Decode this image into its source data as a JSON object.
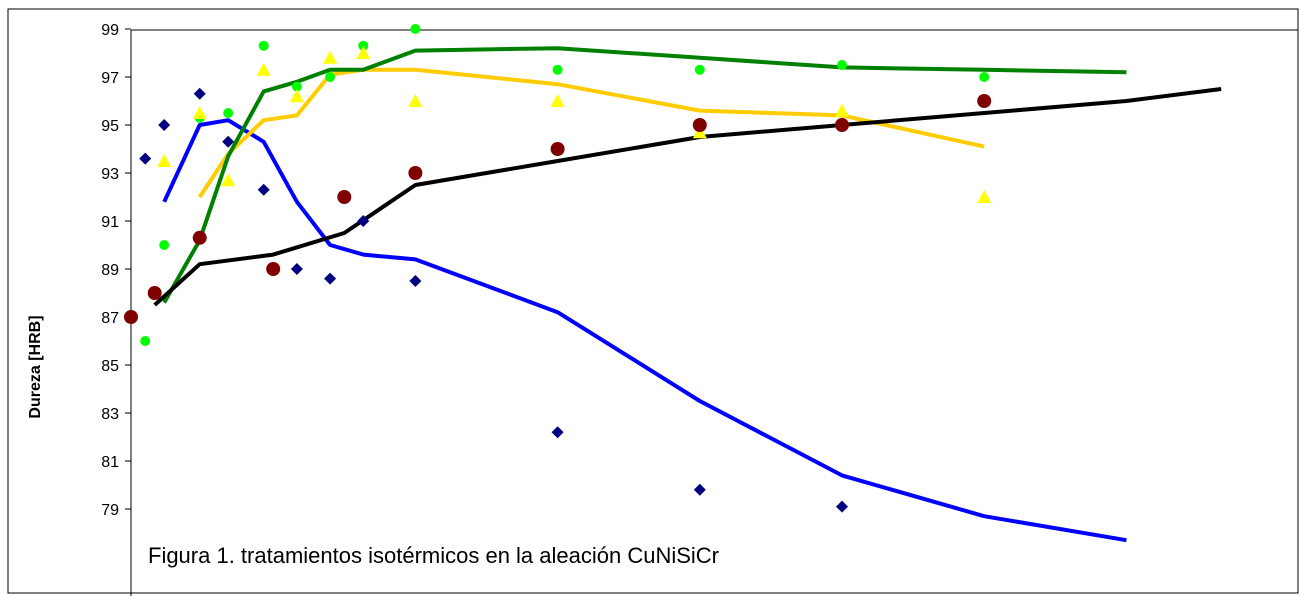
{
  "chart_data": {
    "type": "scatter",
    "title": "",
    "xlabel": "",
    "ylabel": "Dureza [HRB]",
    "annotation": "Figura 1. tratamientos isotérmicos en la aleación CuNiSiCr",
    "ylim": [
      77,
      99
    ],
    "xlim": [
      0,
      49
    ],
    "yticks": [
      79,
      81,
      83,
      85,
      87,
      89,
      91,
      93,
      95,
      97,
      99
    ],
    "grid": false,
    "legend": "none",
    "series": [
      {
        "marker": "diamond",
        "color": "#000080",
        "points": [
          [
            0.6,
            93.6
          ],
          [
            1.4,
            95.0
          ],
          [
            2.9,
            96.3
          ],
          [
            4.1,
            94.3
          ],
          [
            5.6,
            92.3
          ],
          [
            7.0,
            89.0
          ],
          [
            8.4,
            88.6
          ],
          [
            9.8,
            91.0
          ],
          [
            12.0,
            88.5
          ],
          [
            18.0,
            82.2
          ],
          [
            24.0,
            79.8
          ],
          [
            30.0,
            79.1
          ]
        ]
      },
      {
        "marker": "circle",
        "color": "#00ff00",
        "points": [
          [
            0.6,
            86.0
          ],
          [
            1.4,
            90.0
          ],
          [
            2.9,
            95.3
          ],
          [
            4.1,
            95.5
          ],
          [
            5.6,
            98.3
          ],
          [
            7.0,
            96.6
          ],
          [
            8.4,
            97.0
          ],
          [
            9.8,
            98.3
          ],
          [
            12.0,
            99.0
          ],
          [
            18.0,
            97.3
          ],
          [
            24.0,
            97.3
          ],
          [
            30.0,
            97.5
          ],
          [
            36.0,
            97.0
          ]
        ]
      },
      {
        "marker": "triangle",
        "color": "#ffff00",
        "points": [
          [
            1.4,
            93.5
          ],
          [
            2.9,
            95.5
          ],
          [
            4.1,
            92.7
          ],
          [
            5.6,
            97.3
          ],
          [
            7.0,
            96.2
          ],
          [
            8.4,
            97.8
          ],
          [
            9.8,
            98.0
          ],
          [
            12.0,
            96.0
          ],
          [
            18.0,
            96.0
          ],
          [
            24.0,
            94.7
          ],
          [
            30.0,
            95.6
          ],
          [
            36.0,
            92.0
          ]
        ]
      },
      {
        "marker": "circle",
        "color": "#800000",
        "points": [
          [
            0.0,
            87.0
          ],
          [
            1.0,
            88.0
          ],
          [
            2.9,
            90.3
          ],
          [
            6.0,
            89.0
          ],
          [
            9.0,
            92.0
          ],
          [
            12.0,
            93.0
          ],
          [
            18.0,
            94.0
          ],
          [
            24.0,
            95.0
          ],
          [
            30.0,
            95.0
          ],
          [
            36.0,
            96.0
          ]
        ]
      }
    ],
    "trend_lines": [
      {
        "color": "#0000ff",
        "points": [
          [
            1.4,
            91.8
          ],
          [
            2.9,
            95.0
          ],
          [
            4.1,
            95.2
          ],
          [
            5.6,
            94.3
          ],
          [
            7.0,
            91.8
          ],
          [
            8.4,
            90.0
          ],
          [
            9.8,
            89.6
          ],
          [
            12.0,
            89.4
          ],
          [
            18.0,
            87.2
          ],
          [
            24.0,
            83.5
          ],
          [
            30.0,
            80.4
          ],
          [
            36.0,
            78.7
          ],
          [
            42.0,
            77.7
          ]
        ]
      },
      {
        "color": "#ffcc00",
        "points": [
          [
            2.9,
            92.0
          ],
          [
            4.1,
            93.8
          ],
          [
            5.6,
            95.2
          ],
          [
            7.0,
            95.4
          ],
          [
            8.4,
            97.1
          ],
          [
            9.8,
            97.3
          ],
          [
            12.0,
            97.3
          ],
          [
            18.0,
            96.7
          ],
          [
            24.0,
            95.6
          ],
          [
            30.0,
            95.4
          ],
          [
            36.0,
            94.1
          ]
        ]
      },
      {
        "color": "#008000",
        "points": [
          [
            1.4,
            87.6
          ],
          [
            2.9,
            90.2
          ],
          [
            4.1,
            93.7
          ],
          [
            5.6,
            96.4
          ],
          [
            7.0,
            96.8
          ],
          [
            8.4,
            97.3
          ],
          [
            9.8,
            97.3
          ],
          [
            12.0,
            98.1
          ],
          [
            18.0,
            98.2
          ],
          [
            24.0,
            97.8
          ],
          [
            30.0,
            97.4
          ],
          [
            36.0,
            97.3
          ],
          [
            42.0,
            97.2
          ]
        ]
      },
      {
        "color": "#000000",
        "points": [
          [
            1.0,
            87.5
          ],
          [
            2.9,
            89.2
          ],
          [
            6.0,
            89.6
          ],
          [
            9.0,
            90.5
          ],
          [
            12.0,
            92.5
          ],
          [
            18.0,
            93.5
          ],
          [
            24.0,
            94.5
          ],
          [
            30.0,
            95.0
          ],
          [
            36.0,
            95.5
          ],
          [
            42.0,
            96.0
          ],
          [
            46.0,
            96.5
          ]
        ]
      }
    ]
  }
}
